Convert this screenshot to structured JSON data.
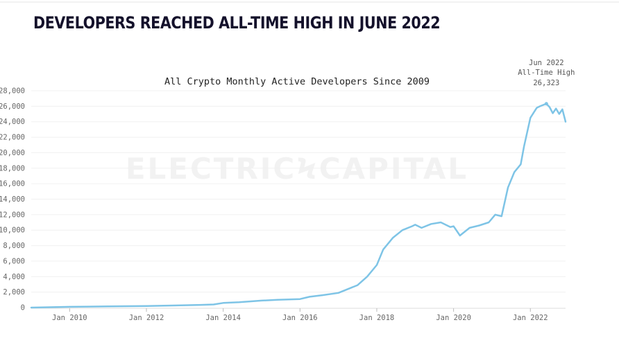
{
  "headline": "DEVELOPERS REACHED ALL-TIME HIGH IN JUNE 2022",
  "watermark": "ELECTRICϞCAPITAL",
  "chart_data": {
    "type": "line",
    "title": "All Crypto Monthly Active Developers Since 2009",
    "xlabel": "",
    "ylabel": "",
    "xlim": [
      "2009-01",
      "2022-12"
    ],
    "ylim": [
      0,
      28000
    ],
    "grid": true,
    "x_ticks": [
      "Jan 2010",
      "Jan 2012",
      "Jan 2014",
      "Jan 2016",
      "Jan 2018",
      "Jan 2020",
      "Jan 2022"
    ],
    "y_ticks": [
      "0",
      "2,000",
      "4,000",
      "6,000",
      "8,000",
      "10,000",
      "12,000",
      "14,000",
      "16,000",
      "18,000",
      "20,000",
      "22,000",
      "24,000",
      "26,000",
      "28,000"
    ],
    "line_color": "#7ec4e6",
    "series": [
      {
        "x": [
          "2009-01",
          "2010-01",
          "2011-01",
          "2012-01",
          "2013-01",
          "2013-06",
          "2013-10",
          "2014-01",
          "2014-06",
          "2015-01",
          "2015-06",
          "2016-01",
          "2016-04",
          "2016-08",
          "2017-01",
          "2017-04",
          "2017-07",
          "2017-10",
          "2018-01",
          "2018-03",
          "2018-06",
          "2018-09",
          "2018-12",
          "2019-01",
          "2019-03",
          "2019-06",
          "2019-09",
          "2019-12",
          "2020-01",
          "2020-03",
          "2020-06",
          "2020-09",
          "2020-12",
          "2021-02",
          "2021-04",
          "2021-06",
          "2021-08",
          "2021-10",
          "2021-11",
          "2022-01",
          "2022-03",
          "2022-04",
          "2022-06",
          "2022-07",
          "2022-08",
          "2022-09",
          "2022-10",
          "2022-11",
          "2022-12"
        ],
        "values": [
          0,
          100,
          150,
          200,
          300,
          350,
          400,
          600,
          700,
          900,
          1000,
          1100,
          1400,
          1600,
          1900,
          2400,
          2900,
          4000,
          5500,
          7500,
          9000,
          10000,
          10500,
          10700,
          10300,
          10800,
          11000,
          10400,
          10500,
          9300,
          10300,
          10600,
          11000,
          12000,
          11800,
          15500,
          17500,
          18500,
          20800,
          24500,
          25800,
          26000,
          26323,
          25900,
          25100,
          25700,
          25000,
          25600,
          24000
        ]
      }
    ],
    "annotation": {
      "date": "Jun 2022",
      "label": "All-Time High",
      "value": "26,323"
    }
  }
}
